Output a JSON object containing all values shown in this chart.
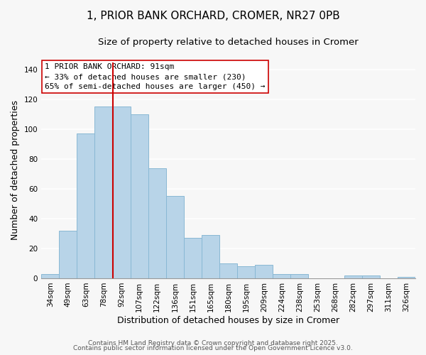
{
  "title": "1, PRIOR BANK ORCHARD, CROMER, NR27 0PB",
  "subtitle": "Size of property relative to detached houses in Cromer",
  "xlabel": "Distribution of detached houses by size in Cromer",
  "ylabel": "Number of detached properties",
  "bar_color": "#b8d4e8",
  "bar_edge_color": "#89b8d4",
  "background_color": "#f7f7f7",
  "grid_color": "#ffffff",
  "categories": [
    "34sqm",
    "49sqm",
    "63sqm",
    "78sqm",
    "92sqm",
    "107sqm",
    "122sqm",
    "136sqm",
    "151sqm",
    "165sqm",
    "180sqm",
    "195sqm",
    "209sqm",
    "224sqm",
    "238sqm",
    "253sqm",
    "268sqm",
    "282sqm",
    "297sqm",
    "311sqm",
    "326sqm"
  ],
  "values": [
    3,
    32,
    97,
    115,
    115,
    110,
    74,
    55,
    27,
    29,
    10,
    8,
    9,
    3,
    3,
    0,
    0,
    2,
    2,
    0,
    1
  ],
  "vline_color": "#cc0000",
  "vline_index": 4,
  "annotation_text_line1": "1 PRIOR BANK ORCHARD: 91sqm",
  "annotation_text_line2": "← 33% of detached houses are smaller (230)",
  "annotation_text_line3": "65% of semi-detached houses are larger (450) →",
  "ylim": [
    0,
    145
  ],
  "yticks": [
    0,
    20,
    40,
    60,
    80,
    100,
    120,
    140
  ],
  "footer1": "Contains HM Land Registry data © Crown copyright and database right 2025.",
  "footer2": "Contains public sector information licensed under the Open Government Licence v3.0.",
  "title_fontsize": 11,
  "subtitle_fontsize": 9.5,
  "axis_label_fontsize": 9,
  "tick_fontsize": 7.5,
  "annotation_fontsize": 8,
  "footer_fontsize": 6.5
}
